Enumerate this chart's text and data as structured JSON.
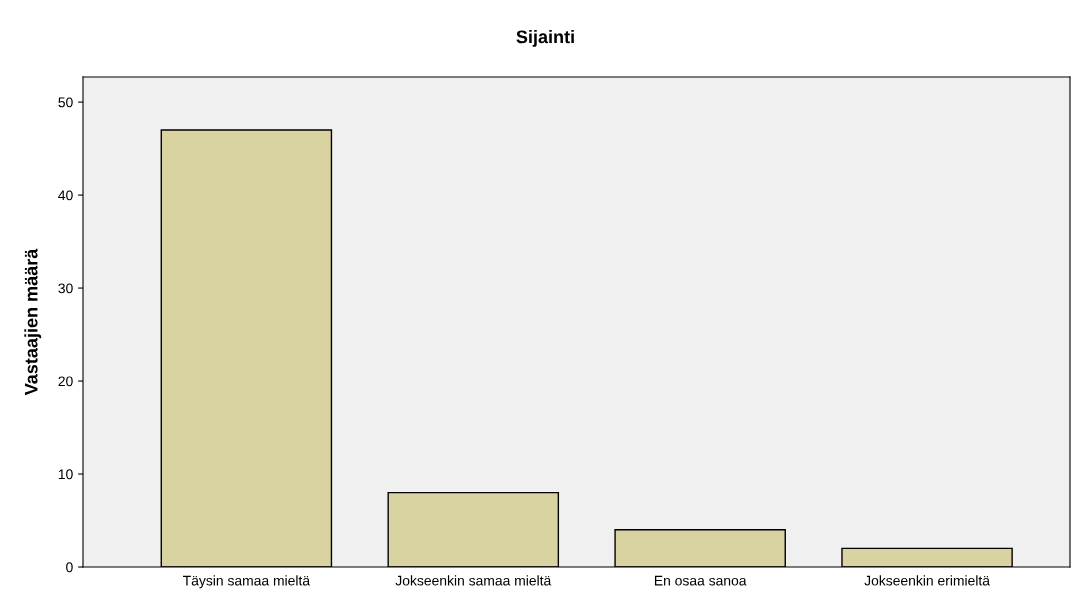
{
  "chart_data": {
    "type": "bar",
    "title": "Sijainti",
    "ylabel": "Vastaajien määrä",
    "categories": [
      "Täysin samaa mieltä",
      "Jokseenkin samaa mieltä",
      "En osaa sanoa",
      "Jokseenkin erimieltä"
    ],
    "values": [
      47,
      8,
      4,
      2
    ],
    "color": "#d9d3a1",
    "ylim": [
      0,
      52.7
    ],
    "yticks": [
      0,
      10,
      20,
      30,
      40,
      50
    ],
    "grid": false,
    "legend": false
  }
}
